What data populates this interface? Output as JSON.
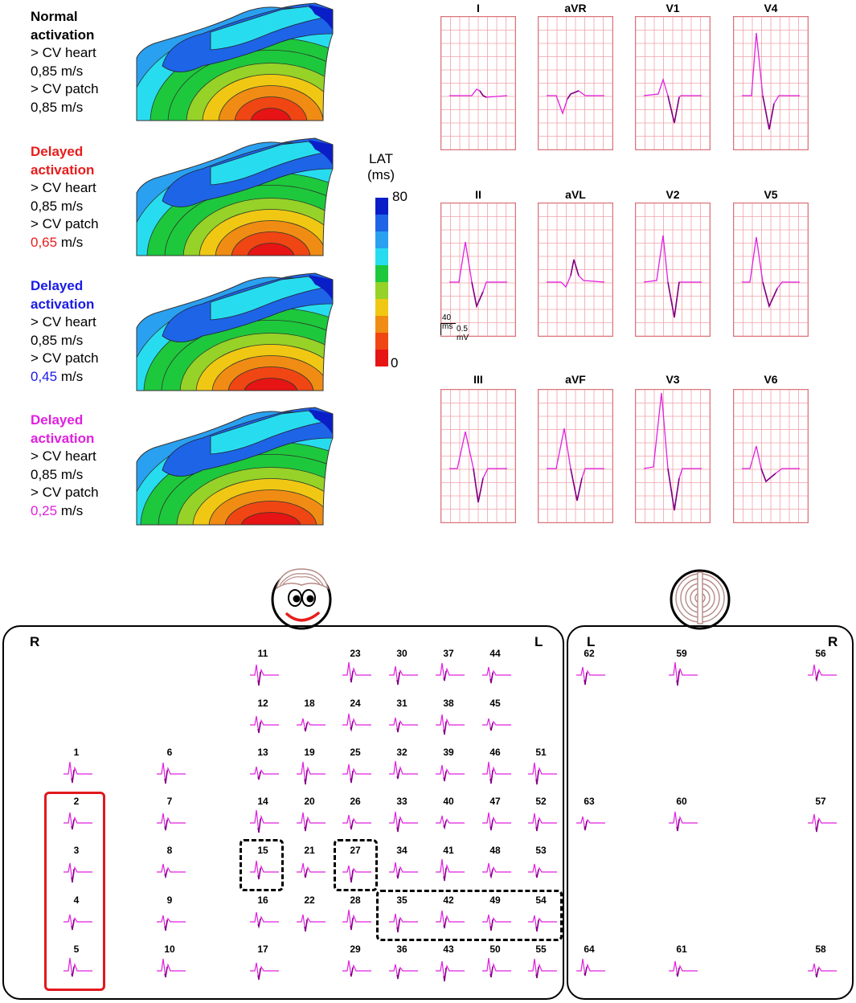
{
  "colors": {
    "magenta": "#e020e0",
    "red": "#e81c1c",
    "blue": "#1a1ae6",
    "ecg_grid": "#f0a0a8",
    "ecg_border": "#d9737a"
  },
  "simulations": [
    {
      "header_line1": "Normal",
      "header_line2": "activation",
      "header_color": "#000000",
      "cv_heart_label": "> CV heart",
      "cv_heart_value": "0,85",
      "cv_patch_label": "> CV patch",
      "cv_patch_value": "0,85",
      "unit": "m/s",
      "patch_value_color": "#000000"
    },
    {
      "header_line1": "Delayed",
      "header_line2": "activation",
      "header_color": "#e81c1c",
      "cv_heart_label": "> CV heart",
      "cv_heart_value": "0,85",
      "cv_patch_label": "> CV patch",
      "cv_patch_value": "0,65",
      "unit": "m/s",
      "patch_value_color": "#e81c1c"
    },
    {
      "header_line1": "Delayed",
      "header_line2": "activation",
      "header_color": "#1a1ae6",
      "cv_heart_label": "> CV heart",
      "cv_heart_value": "0,85",
      "cv_patch_label": "> CV patch",
      "cv_patch_value": "0,45",
      "unit": "m/s",
      "patch_value_color": "#1a1ae6"
    },
    {
      "header_line1": "Delayed",
      "header_line2": "activation",
      "header_color": "#e020e0",
      "cv_heart_label": "> CV heart",
      "cv_heart_value": "0,85",
      "cv_patch_label": "> CV patch",
      "cv_patch_value": "0,25",
      "unit": "m/s",
      "patch_value_color": "#e020e0"
    }
  ],
  "colorbar": {
    "label_line1": "LAT",
    "label_line2": "(ms)",
    "max": "80",
    "min": "0",
    "colors": [
      "#0a1ec8",
      "#1e64e6",
      "#2aa0f0",
      "#28dcf0",
      "#1ec83c",
      "#96d228",
      "#f0c814",
      "#f08c14",
      "#f04614",
      "#e61414"
    ]
  },
  "ecg_leads": [
    {
      "name": "I"
    },
    {
      "name": "aVR"
    },
    {
      "name": "V1"
    },
    {
      "name": "V4"
    },
    {
      "name": "II"
    },
    {
      "name": "aVL"
    },
    {
      "name": "V2"
    },
    {
      "name": "V5"
    },
    {
      "name": "III"
    },
    {
      "name": "aVF"
    },
    {
      "name": "V3"
    },
    {
      "name": "V6"
    }
  ],
  "ecg_scale": {
    "time": "40 ms",
    "amplitude": "0.5 mV"
  },
  "torso": {
    "front_left_label": "R",
    "front_right_label": "L",
    "back_left_label": "L",
    "back_right_label": "R"
  },
  "electrodes_front": [
    "1",
    "2",
    "3",
    "4",
    "5",
    "6",
    "7",
    "8",
    "9",
    "10",
    "11",
    "12",
    "13",
    "14",
    "15",
    "16",
    "17",
    "18",
    "19",
    "20",
    "21",
    "22",
    "23",
    "24",
    "25",
    "26",
    "27",
    "28",
    "29",
    "30",
    "31",
    "32",
    "33",
    "34",
    "35",
    "36",
    "37",
    "38",
    "39",
    "40",
    "41",
    "42",
    "43",
    "44",
    "45",
    "46",
    "47",
    "48",
    "49",
    "50",
    "51",
    "52",
    "53",
    "54",
    "55"
  ],
  "electrodes_back": [
    "62",
    "59",
    "56",
    "63",
    "60",
    "57",
    "64",
    "61",
    "58"
  ]
}
